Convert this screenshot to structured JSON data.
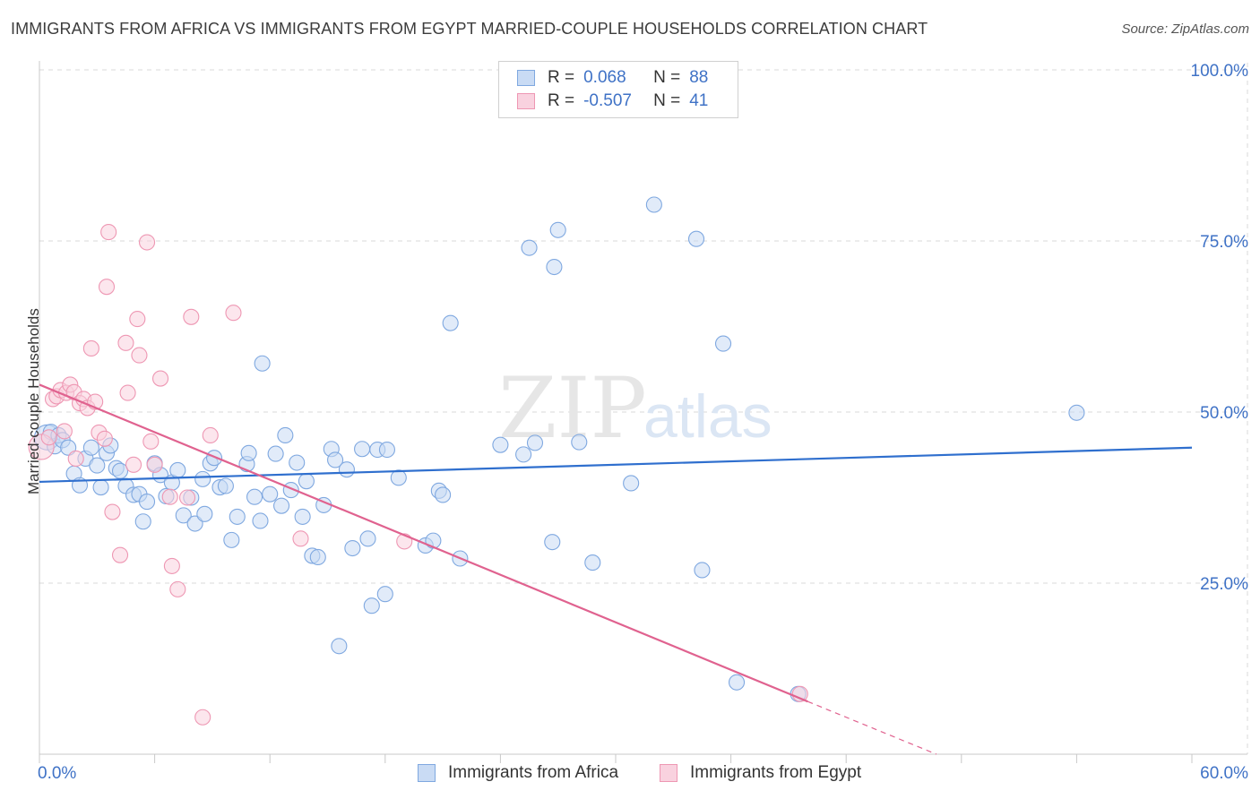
{
  "title": "IMMIGRANTS FROM AFRICA VS IMMIGRANTS FROM EGYPT MARRIED-COUPLE HOUSEHOLDS CORRELATION CHART",
  "source": "Source: ZipAtlas.com",
  "watermark": {
    "zip": "ZIP",
    "atlas": "atlas"
  },
  "colors": {
    "africa": "#7fa8e0",
    "africa_fill": "#c9dbf4",
    "africa_line": "#2f6fce",
    "egypt": "#ee97b3",
    "egypt_fill": "#f9d2df",
    "egypt_line": "#e0628f",
    "axis_text": "#3f72c6",
    "grid": "#d8d8d8"
  },
  "legend": {
    "rows": [
      {
        "r_label": "R =",
        "r_value": "0.068",
        "n_label": "N =",
        "n_value": "88"
      },
      {
        "r_label": "R =",
        "r_value": "-0.507",
        "n_label": "N =",
        "n_value": "41"
      }
    ]
  },
  "chart_data": {
    "type": "scatter",
    "title": "IMMIGRANTS FROM AFRICA VS IMMIGRANTS FROM EGYPT MARRIED-COUPLE HOUSEHOLDS CORRELATION CHART",
    "xlabel": "",
    "ylabel": "Married-couple Households",
    "xlim": [
      0,
      60
    ],
    "ylim": [
      0,
      100
    ],
    "x_tick_labels": [
      "0.0%",
      "60.0%"
    ],
    "y_tick_labels": [
      {
        "value": 100,
        "label": "100.0%"
      },
      {
        "value": 75,
        "label": "75.0%"
      },
      {
        "value": 50,
        "label": "50.0%"
      },
      {
        "value": 25,
        "label": "25.0%"
      }
    ],
    "grid": true,
    "series": [
      {
        "name": "Immigrants from Africa",
        "r": 0.068,
        "n": 88,
        "trend": {
          "x": [
            0,
            60
          ],
          "y": [
            39.8,
            44.8
          ]
        },
        "points": [
          [
            0.4,
            46.3
          ],
          [
            0.6,
            47.1
          ],
          [
            0.8,
            45.0
          ],
          [
            1.0,
            46.6
          ],
          [
            1.2,
            45.9
          ],
          [
            1.5,
            44.8
          ],
          [
            1.8,
            41.0
          ],
          [
            2.1,
            39.3
          ],
          [
            2.4,
            43.2
          ],
          [
            2.7,
            44.8
          ],
          [
            3.0,
            42.2
          ],
          [
            3.2,
            39.0
          ],
          [
            3.5,
            44.0
          ],
          [
            3.7,
            45.1
          ],
          [
            4.0,
            41.8
          ],
          [
            4.2,
            41.4
          ],
          [
            4.5,
            39.2
          ],
          [
            4.9,
            37.9
          ],
          [
            5.2,
            38.0
          ],
          [
            5.6,
            36.9
          ],
          [
            5.4,
            34.0
          ],
          [
            6.0,
            42.5
          ],
          [
            6.3,
            40.8
          ],
          [
            6.6,
            37.7
          ],
          [
            6.9,
            39.7
          ],
          [
            7.2,
            41.5
          ],
          [
            7.5,
            34.9
          ],
          [
            7.9,
            37.5
          ],
          [
            8.1,
            33.7
          ],
          [
            8.5,
            40.2
          ],
          [
            8.6,
            35.1
          ],
          [
            8.9,
            42.5
          ],
          [
            9.1,
            43.3
          ],
          [
            9.4,
            39.0
          ],
          [
            9.7,
            39.2
          ],
          [
            10.0,
            31.3
          ],
          [
            10.3,
            34.7
          ],
          [
            10.8,
            42.4
          ],
          [
            10.9,
            44.0
          ],
          [
            11.2,
            37.6
          ],
          [
            11.5,
            34.1
          ],
          [
            11.6,
            57.1
          ],
          [
            12.0,
            38.0
          ],
          [
            12.3,
            43.9
          ],
          [
            12.6,
            36.3
          ],
          [
            12.8,
            46.6
          ],
          [
            13.1,
            38.6
          ],
          [
            13.4,
            42.6
          ],
          [
            13.7,
            34.7
          ],
          [
            13.9,
            39.9
          ],
          [
            14.2,
            29.0
          ],
          [
            14.5,
            28.8
          ],
          [
            14.8,
            36.4
          ],
          [
            15.2,
            44.6
          ],
          [
            15.4,
            43.0
          ],
          [
            15.6,
            15.8
          ],
          [
            16.0,
            41.6
          ],
          [
            16.3,
            30.1
          ],
          [
            16.8,
            44.6
          ],
          [
            17.1,
            31.5
          ],
          [
            17.3,
            21.7
          ],
          [
            17.6,
            44.5
          ],
          [
            18.0,
            23.4
          ],
          [
            18.1,
            44.5
          ],
          [
            18.7,
            40.4
          ],
          [
            20.1,
            30.5
          ],
          [
            20.5,
            31.2
          ],
          [
            20.8,
            38.5
          ],
          [
            21.0,
            37.9
          ],
          [
            21.4,
            63.0
          ],
          [
            21.9,
            28.6
          ],
          [
            24.0,
            45.2
          ],
          [
            25.2,
            43.8
          ],
          [
            25.5,
            74.0
          ],
          [
            25.8,
            45.5
          ],
          [
            26.7,
            31.0
          ],
          [
            26.8,
            71.2
          ],
          [
            27.0,
            76.6
          ],
          [
            28.1,
            45.6
          ],
          [
            28.8,
            28.0
          ],
          [
            30.8,
            39.6
          ],
          [
            32.0,
            80.3
          ],
          [
            34.2,
            75.3
          ],
          [
            34.5,
            26.9
          ],
          [
            35.6,
            60.0
          ],
          [
            36.3,
            10.5
          ],
          [
            39.5,
            8.8
          ],
          [
            54.0,
            49.9
          ]
        ]
      },
      {
        "name": "Immigrants from Egypt",
        "r": -0.507,
        "n": 41,
        "trend": {
          "x": [
            0,
            40
          ],
          "y": [
            54.0,
            7.7
          ]
        },
        "trend_dashed": {
          "x": [
            40,
            46.7
          ],
          "y": [
            7.7,
            0
          ]
        },
        "points": [
          [
            0.1,
            44.9
          ],
          [
            0.5,
            46.3
          ],
          [
            0.7,
            51.9
          ],
          [
            0.9,
            52.3
          ],
          [
            1.1,
            53.2
          ],
          [
            1.3,
            47.2
          ],
          [
            1.4,
            52.8
          ],
          [
            1.6,
            54.0
          ],
          [
            1.8,
            52.9
          ],
          [
            1.9,
            43.2
          ],
          [
            2.1,
            51.3
          ],
          [
            2.3,
            51.9
          ],
          [
            2.5,
            50.6
          ],
          [
            2.7,
            59.3
          ],
          [
            2.9,
            51.5
          ],
          [
            3.1,
            47.0
          ],
          [
            3.4,
            46.1
          ],
          [
            3.5,
            68.3
          ],
          [
            3.6,
            76.3
          ],
          [
            3.8,
            35.4
          ],
          [
            4.2,
            29.1
          ],
          [
            4.5,
            60.1
          ],
          [
            4.6,
            52.8
          ],
          [
            4.9,
            42.3
          ],
          [
            5.1,
            63.6
          ],
          [
            5.2,
            58.3
          ],
          [
            5.6,
            74.8
          ],
          [
            5.8,
            45.7
          ],
          [
            6.0,
            42.3
          ],
          [
            6.3,
            54.9
          ],
          [
            6.8,
            37.6
          ],
          [
            6.9,
            27.5
          ],
          [
            7.2,
            24.1
          ],
          [
            7.7,
            37.5
          ],
          [
            7.9,
            63.9
          ],
          [
            8.5,
            5.4
          ],
          [
            8.9,
            46.6
          ],
          [
            10.1,
            64.5
          ],
          [
            13.6,
            31.5
          ],
          [
            19.0,
            31.1
          ],
          [
            39.6,
            8.8
          ]
        ]
      }
    ]
  }
}
